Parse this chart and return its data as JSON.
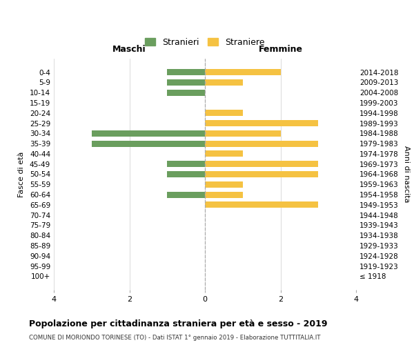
{
  "age_groups": [
    "0-4",
    "5-9",
    "10-14",
    "15-19",
    "20-24",
    "25-29",
    "30-34",
    "35-39",
    "40-44",
    "45-49",
    "50-54",
    "55-59",
    "60-64",
    "65-69",
    "70-74",
    "75-79",
    "80-84",
    "85-89",
    "90-94",
    "95-99",
    "100+"
  ],
  "birth_years": [
    "2014-2018",
    "2009-2013",
    "2004-2008",
    "1999-2003",
    "1994-1998",
    "1989-1993",
    "1984-1988",
    "1979-1983",
    "1974-1978",
    "1969-1973",
    "1964-1968",
    "1959-1963",
    "1954-1958",
    "1949-1953",
    "1944-1948",
    "1939-1943",
    "1934-1938",
    "1929-1933",
    "1924-1928",
    "1919-1923",
    "≤ 1918"
  ],
  "maschi": [
    1,
    1,
    1,
    0,
    0,
    0,
    3,
    3,
    0,
    1,
    1,
    0,
    1,
    0,
    0,
    0,
    0,
    0,
    0,
    0,
    0
  ],
  "femmine": [
    2,
    1,
    0,
    0,
    1,
    3,
    2,
    3,
    1,
    3,
    3,
    1,
    1,
    3,
    0,
    0,
    0,
    0,
    0,
    0,
    0
  ],
  "color_maschi": "#6a9e5e",
  "color_femmine": "#f5c242",
  "title": "Popolazione per cittadinanza straniera per età e sesso - 2019",
  "subtitle": "COMUNE DI MORIONDO TORINESE (TO) - Dati ISTAT 1° gennaio 2019 - Elaborazione TUTTITALIA.IT",
  "ylabel_left": "Fasce di età",
  "ylabel_right": "Anni di nascita",
  "xlabel_left": "Maschi",
  "xlabel_right": "Femmine",
  "legend_maschi": "Stranieri",
  "legend_femmine": "Straniere",
  "xlim": 4,
  "background_color": "#ffffff",
  "grid_color": "#cccccc"
}
